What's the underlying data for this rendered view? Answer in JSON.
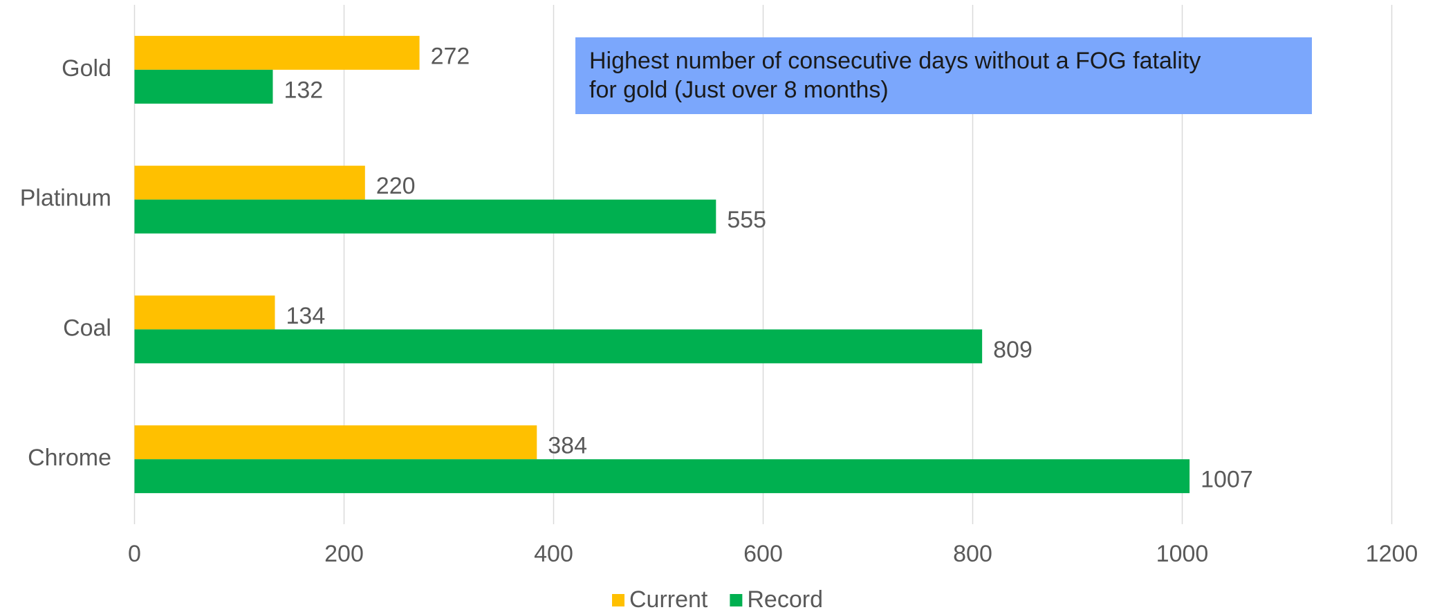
{
  "chart_data": {
    "type": "barh",
    "categories": [
      "Gold",
      "Platinum",
      "Coal",
      "Chrome"
    ],
    "series": [
      {
        "name": "Current",
        "color": "#ffc000",
        "values": [
          272,
          220,
          134,
          384
        ]
      },
      {
        "name": "Record",
        "color": "#00b050",
        "values": [
          132,
          555,
          809,
          1007
        ]
      }
    ],
    "xlim": [
      0,
      1200
    ],
    "xticks": [
      0,
      200,
      400,
      600,
      800,
      1000,
      1200
    ],
    "grid": true,
    "legend": "bottom",
    "annotation": {
      "lines": [
        "Highest number of consecutive days without a FOG fatality",
        "for gold (Just over 8 months)"
      ],
      "color": "#7ba7fc"
    }
  }
}
